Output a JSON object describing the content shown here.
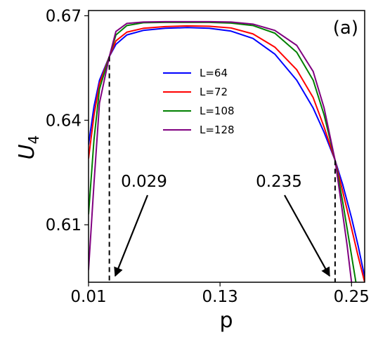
{
  "chart_data": {
    "type": "line",
    "panel_label": "(a)",
    "xlabel": "p",
    "ylabel_main": "U",
    "ylabel_sub": "4",
    "xlim": [
      0.01,
      0.262
    ],
    "ylim": [
      0.5935,
      0.6715
    ],
    "xticks": [
      0.01,
      0.13,
      0.25
    ],
    "xtick_labels": [
      "0.01",
      "0.13",
      "0.25"
    ],
    "yticks": [
      0.61,
      0.64,
      0.67
    ],
    "ytick_labels": [
      "0.61",
      "0.64",
      "0.67"
    ],
    "grid": false,
    "legend_position": "center",
    "series": [
      {
        "name": "L=64",
        "color": "#0000ff",
        "x": [
          0.01,
          0.015,
          0.02,
          0.029,
          0.035,
          0.045,
          0.06,
          0.08,
          0.1,
          0.12,
          0.14,
          0.16,
          0.18,
          0.2,
          0.215,
          0.225,
          0.235,
          0.242,
          0.25,
          0.256,
          0.262
        ],
        "y": [
          0.633,
          0.644,
          0.6515,
          0.6583,
          0.6618,
          0.6645,
          0.6658,
          0.6664,
          0.6666,
          0.6664,
          0.6656,
          0.6635,
          0.659,
          0.6515,
          0.6435,
          0.6365,
          0.6285,
          0.6215,
          0.612,
          0.604,
          0.595
        ]
      },
      {
        "name": "L=72",
        "color": "#ff0000",
        "x": [
          0.01,
          0.015,
          0.02,
          0.029,
          0.035,
          0.045,
          0.06,
          0.08,
          0.1,
          0.12,
          0.14,
          0.16,
          0.18,
          0.2,
          0.215,
          0.225,
          0.235,
          0.242,
          0.25,
          0.256,
          0.262
        ],
        "y": [
          0.629,
          0.6415,
          0.6505,
          0.6583,
          0.6628,
          0.6653,
          0.6664,
          0.6669,
          0.6671,
          0.667,
          0.6665,
          0.6648,
          0.661,
          0.6545,
          0.6465,
          0.638,
          0.6285,
          0.6195,
          0.609,
          0.601,
          0.5935
        ]
      },
      {
        "name": "L=108",
        "color": "#008000",
        "x": [
          0.01,
          0.015,
          0.02,
          0.029,
          0.035,
          0.045,
          0.06,
          0.08,
          0.1,
          0.12,
          0.14,
          0.16,
          0.18,
          0.2,
          0.215,
          0.225,
          0.235,
          0.242,
          0.248,
          0.254
        ],
        "y": [
          0.613,
          0.6345,
          0.649,
          0.6583,
          0.6645,
          0.6672,
          0.668,
          0.6681,
          0.6681,
          0.6681,
          0.6679,
          0.6672,
          0.665,
          0.6595,
          0.6515,
          0.6415,
          0.6285,
          0.6165,
          0.605,
          0.5935
        ]
      },
      {
        "name": "L=128",
        "color": "#800080",
        "x": [
          0.01,
          0.015,
          0.02,
          0.029,
          0.035,
          0.045,
          0.06,
          0.08,
          0.1,
          0.12,
          0.14,
          0.16,
          0.18,
          0.2,
          0.215,
          0.225,
          0.235,
          0.24,
          0.246,
          0.25
        ],
        "y": [
          0.597,
          0.622,
          0.645,
          0.6583,
          0.6655,
          0.6678,
          0.6682,
          0.6683,
          0.6683,
          0.6683,
          0.6682,
          0.6676,
          0.6658,
          0.6615,
          0.654,
          0.6435,
          0.6285,
          0.6175,
          0.604,
          0.5935
        ]
      }
    ],
    "annotations": [
      {
        "text": "0.029",
        "x": 0.029,
        "y_top": 0.6583
      },
      {
        "text": "0.235",
        "x": 0.235,
        "y_top": 0.6285
      }
    ]
  }
}
